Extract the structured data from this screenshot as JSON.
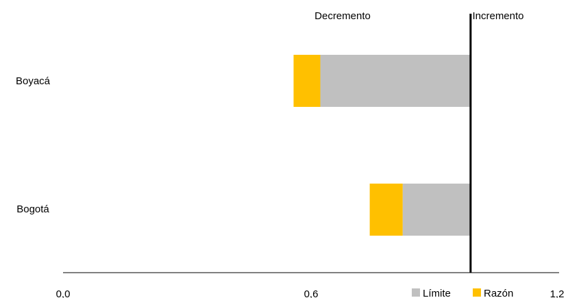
{
  "chart_data": {
    "type": "bar",
    "orientation": "horizontal",
    "stacked": true,
    "categories": [
      "Boyacá",
      "Bogotá"
    ],
    "series": [
      {
        "name": "Límite",
        "color": "#c0c0c0",
        "ranges": [
          [
            0.625,
            0.99
          ],
          [
            0.825,
            0.99
          ]
        ]
      },
      {
        "name": "Razón",
        "color": "#ffc000",
        "ranges": [
          [
            0.56,
            0.625
          ],
          [
            0.745,
            0.825
          ]
        ]
      }
    ],
    "reference_line": {
      "x": 0.99,
      "color": "#000000"
    },
    "annotations": {
      "left": "Decremento",
      "right": "Incremento"
    },
    "xlim": [
      0.0,
      1.2
    ],
    "xticks": [
      "0,0",
      "0,6",
      "1,2"
    ],
    "xtick_values": [
      0.0,
      0.6,
      1.2
    ],
    "grid": false,
    "legend_position": "bottom-right"
  }
}
